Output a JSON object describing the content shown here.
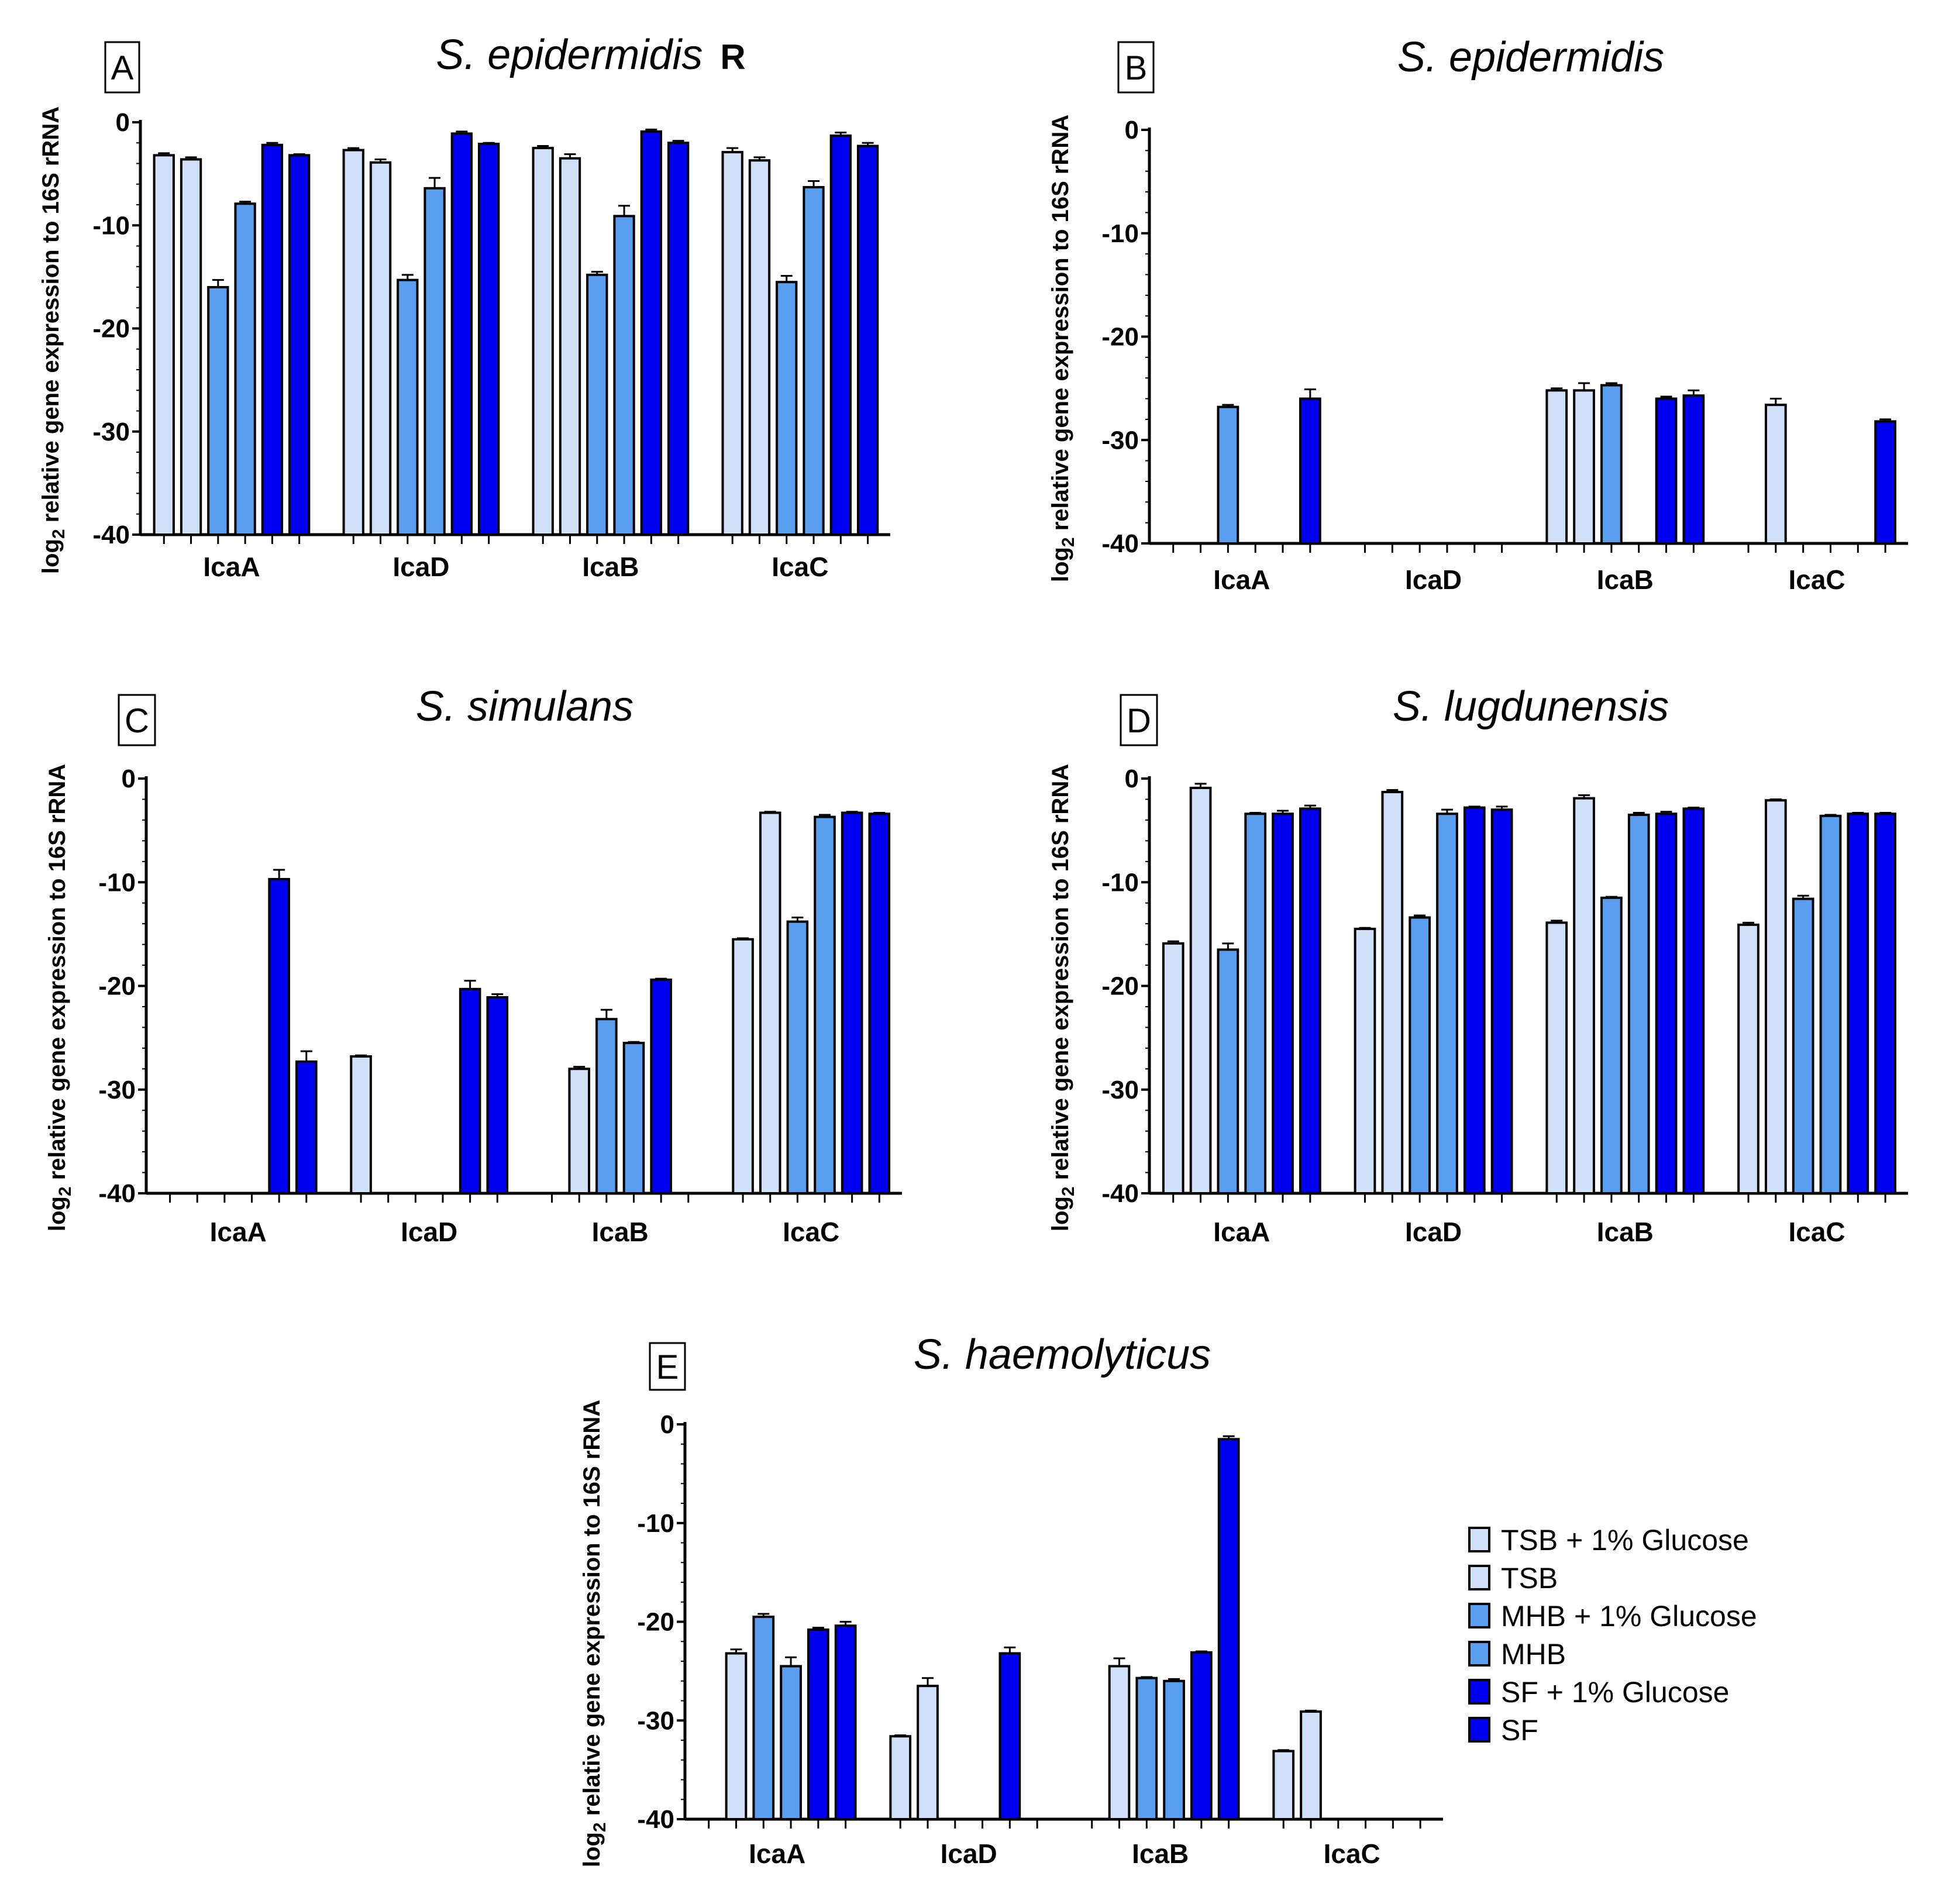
{
  "colors": {
    "TSB + 1% Glucose": "#cfe0f8",
    "TSB": "#cfe0f8",
    "MHB + 1% Glucose": "#5a9ef0",
    "MHB": "#5a9ef0",
    "SF + 1% Glucose": "#0000f0",
    "SF": "#0000f0"
  },
  "legend": [
    "TSB + 1% Glucose",
    "TSB",
    "MHB + 1% Glucose",
    "MHB",
    "SF + 1% Glucose",
    "SF"
  ],
  "chart_data": [
    {
      "type": "bar",
      "panel": "A",
      "title": "S. epidermidis",
      "title_suffix": "R",
      "ylabel_main": "log",
      "ylabel_sub": "2",
      "ylabel_rest": " relative gene expression to 16S rRNA",
      "ylim": [
        -40,
        0
      ],
      "yticks": [
        "0",
        "-10",
        "-20",
        "-30",
        "-40"
      ],
      "categories": [
        "IcaA",
        "IcaD",
        "IcaB",
        "IcaC"
      ],
      "values": [
        [
          -3.2,
          -3.6,
          -16.0,
          -7.9,
          -2.2,
          -3.2
        ],
        [
          -2.7,
          -3.9,
          -15.3,
          -6.4,
          -1.1,
          -2.1
        ],
        [
          -2.5,
          -3.5,
          -14.8,
          -9.1,
          -0.9,
          -2.0
        ],
        [
          -2.9,
          -3.7,
          -15.5,
          -6.3,
          -1.3,
          -2.3
        ]
      ],
      "errors": [
        [
          0.2,
          0.2,
          0.7,
          0.2,
          0.2,
          0.1
        ],
        [
          0.2,
          0.3,
          0.5,
          1.0,
          0.2,
          0.1
        ],
        [
          0.2,
          0.4,
          0.3,
          1.0,
          0.2,
          0.2
        ],
        [
          0.4,
          0.3,
          0.6,
          0.6,
          0.3,
          0.3
        ]
      ]
    },
    {
      "type": "bar",
      "panel": "B",
      "title": "S. epidermidis",
      "title_suffix": "",
      "ylabel_main": "log",
      "ylabel_sub": "2",
      "ylabel_rest": " relative gene expression to 16S rRNA",
      "ylim": [
        -40,
        0
      ],
      "yticks": [
        "0",
        "-10",
        "-20",
        "-30",
        "-40"
      ],
      "categories": [
        "IcaA",
        "IcaD",
        "IcaB",
        "IcaC"
      ],
      "values": [
        [
          null,
          null,
          -26.8,
          null,
          null,
          -26.0
        ],
        [
          null,
          null,
          null,
          null,
          null,
          null
        ],
        [
          -25.2,
          -25.2,
          -24.7,
          null,
          -26.0,
          -25.7
        ],
        [
          null,
          -26.6,
          null,
          null,
          null,
          -28.2
        ]
      ],
      "errors": [
        [
          0,
          0,
          0.2,
          0,
          0,
          0.9
        ],
        [
          0,
          0,
          0,
          0,
          0,
          0
        ],
        [
          0.2,
          0.7,
          0.2,
          0,
          0.2,
          0.5
        ],
        [
          0,
          0.6,
          0,
          0,
          0,
          0.2
        ]
      ]
    },
    {
      "type": "bar",
      "panel": "C",
      "title": "S. simulans",
      "title_suffix": "",
      "ylabel_main": "log",
      "ylabel_sub": "2",
      "ylabel_rest": " relative gene expression to 16S rRNA",
      "ylim": [
        -40,
        0
      ],
      "yticks": [
        "0",
        "-10",
        "-20",
        "-30",
        "-40"
      ],
      "categories": [
        "IcaA",
        "IcaD",
        "IcaB",
        "IcaC"
      ],
      "values": [
        [
          null,
          null,
          null,
          null,
          -9.7,
          -27.3
        ],
        [
          -26.8,
          null,
          null,
          null,
          -20.3,
          -21.1
        ],
        [
          null,
          -28.0,
          -23.2,
          -25.5,
          -19.4,
          null
        ],
        [
          -15.5,
          -3.3,
          -13.8,
          -3.7,
          -3.3,
          -3.4
        ]
      ],
      "errors": [
        [
          0,
          0,
          0,
          0,
          0.9,
          1.0
        ],
        [
          0.1,
          0,
          0,
          0,
          0.8,
          0.3
        ],
        [
          0,
          0.2,
          0.9,
          0.1,
          0.1,
          0
        ],
        [
          0.1,
          0.1,
          0.4,
          0.2,
          0.1,
          0.1
        ]
      ]
    },
    {
      "type": "bar",
      "panel": "D",
      "title": "S. lugdunensis",
      "title_suffix": "",
      "ylabel_main": "log",
      "ylabel_sub": "2",
      "ylabel_rest": " relative gene expression to 16S rRNA",
      "ylim": [
        -40,
        0
      ],
      "yticks": [
        "0",
        "-10",
        "-20",
        "-30",
        "-40"
      ],
      "categories": [
        "IcaA",
        "IcaD",
        "IcaB",
        "IcaC"
      ],
      "values": [
        [
          -15.9,
          -0.9,
          -16.5,
          -3.4,
          -3.4,
          -2.9
        ],
        [
          -14.5,
          -1.3,
          -13.4,
          -3.4,
          -2.8,
          -3.0
        ],
        [
          -13.9,
          -1.9,
          -11.5,
          -3.5,
          -3.4,
          -2.9
        ],
        [
          -14.1,
          -2.1,
          -11.6,
          -3.6,
          -3.4,
          -3.4
        ]
      ],
      "errors": [
        [
          0.2,
          0.4,
          0.6,
          0.1,
          0.3,
          0.3
        ],
        [
          0.1,
          0.2,
          0.2,
          0.4,
          0.1,
          0.3
        ],
        [
          0.2,
          0.3,
          0.1,
          0.2,
          0.2,
          0.1
        ],
        [
          0.2,
          0.1,
          0.3,
          0.1,
          0.1,
          0.1
        ]
      ]
    },
    {
      "type": "bar",
      "panel": "E",
      "title": "S. haemolyticus",
      "title_suffix": "",
      "ylabel_main": "log",
      "ylabel_sub": "2",
      "ylabel_rest": " relative gene expression to 16S rRNA",
      "ylim": [
        -40,
        0
      ],
      "yticks": [
        "0",
        "-10",
        "-20",
        "-30",
        "-40"
      ],
      "categories": [
        "IcaA",
        "IcaD",
        "IcaB",
        "IcaC"
      ],
      "values": [
        [
          null,
          -23.2,
          -19.5,
          -24.5,
          -20.8,
          -20.4
        ],
        [
          -31.6,
          -26.5,
          null,
          null,
          -23.2,
          null
        ],
        [
          null,
          -24.5,
          -25.7,
          -26.0,
          -23.1,
          -1.5
        ],
        [
          -33.1,
          -29.1,
          null,
          null,
          null,
          null
        ]
      ],
      "errors": [
        [
          0,
          0.4,
          0.3,
          0.9,
          0.2,
          0.4
        ],
        [
          0.1,
          0.8,
          0,
          0,
          0.6,
          0
        ],
        [
          0,
          0.8,
          0.1,
          0.2,
          0.1,
          0.3
        ],
        [
          0.1,
          0.1,
          0,
          0,
          0,
          0
        ]
      ]
    }
  ]
}
